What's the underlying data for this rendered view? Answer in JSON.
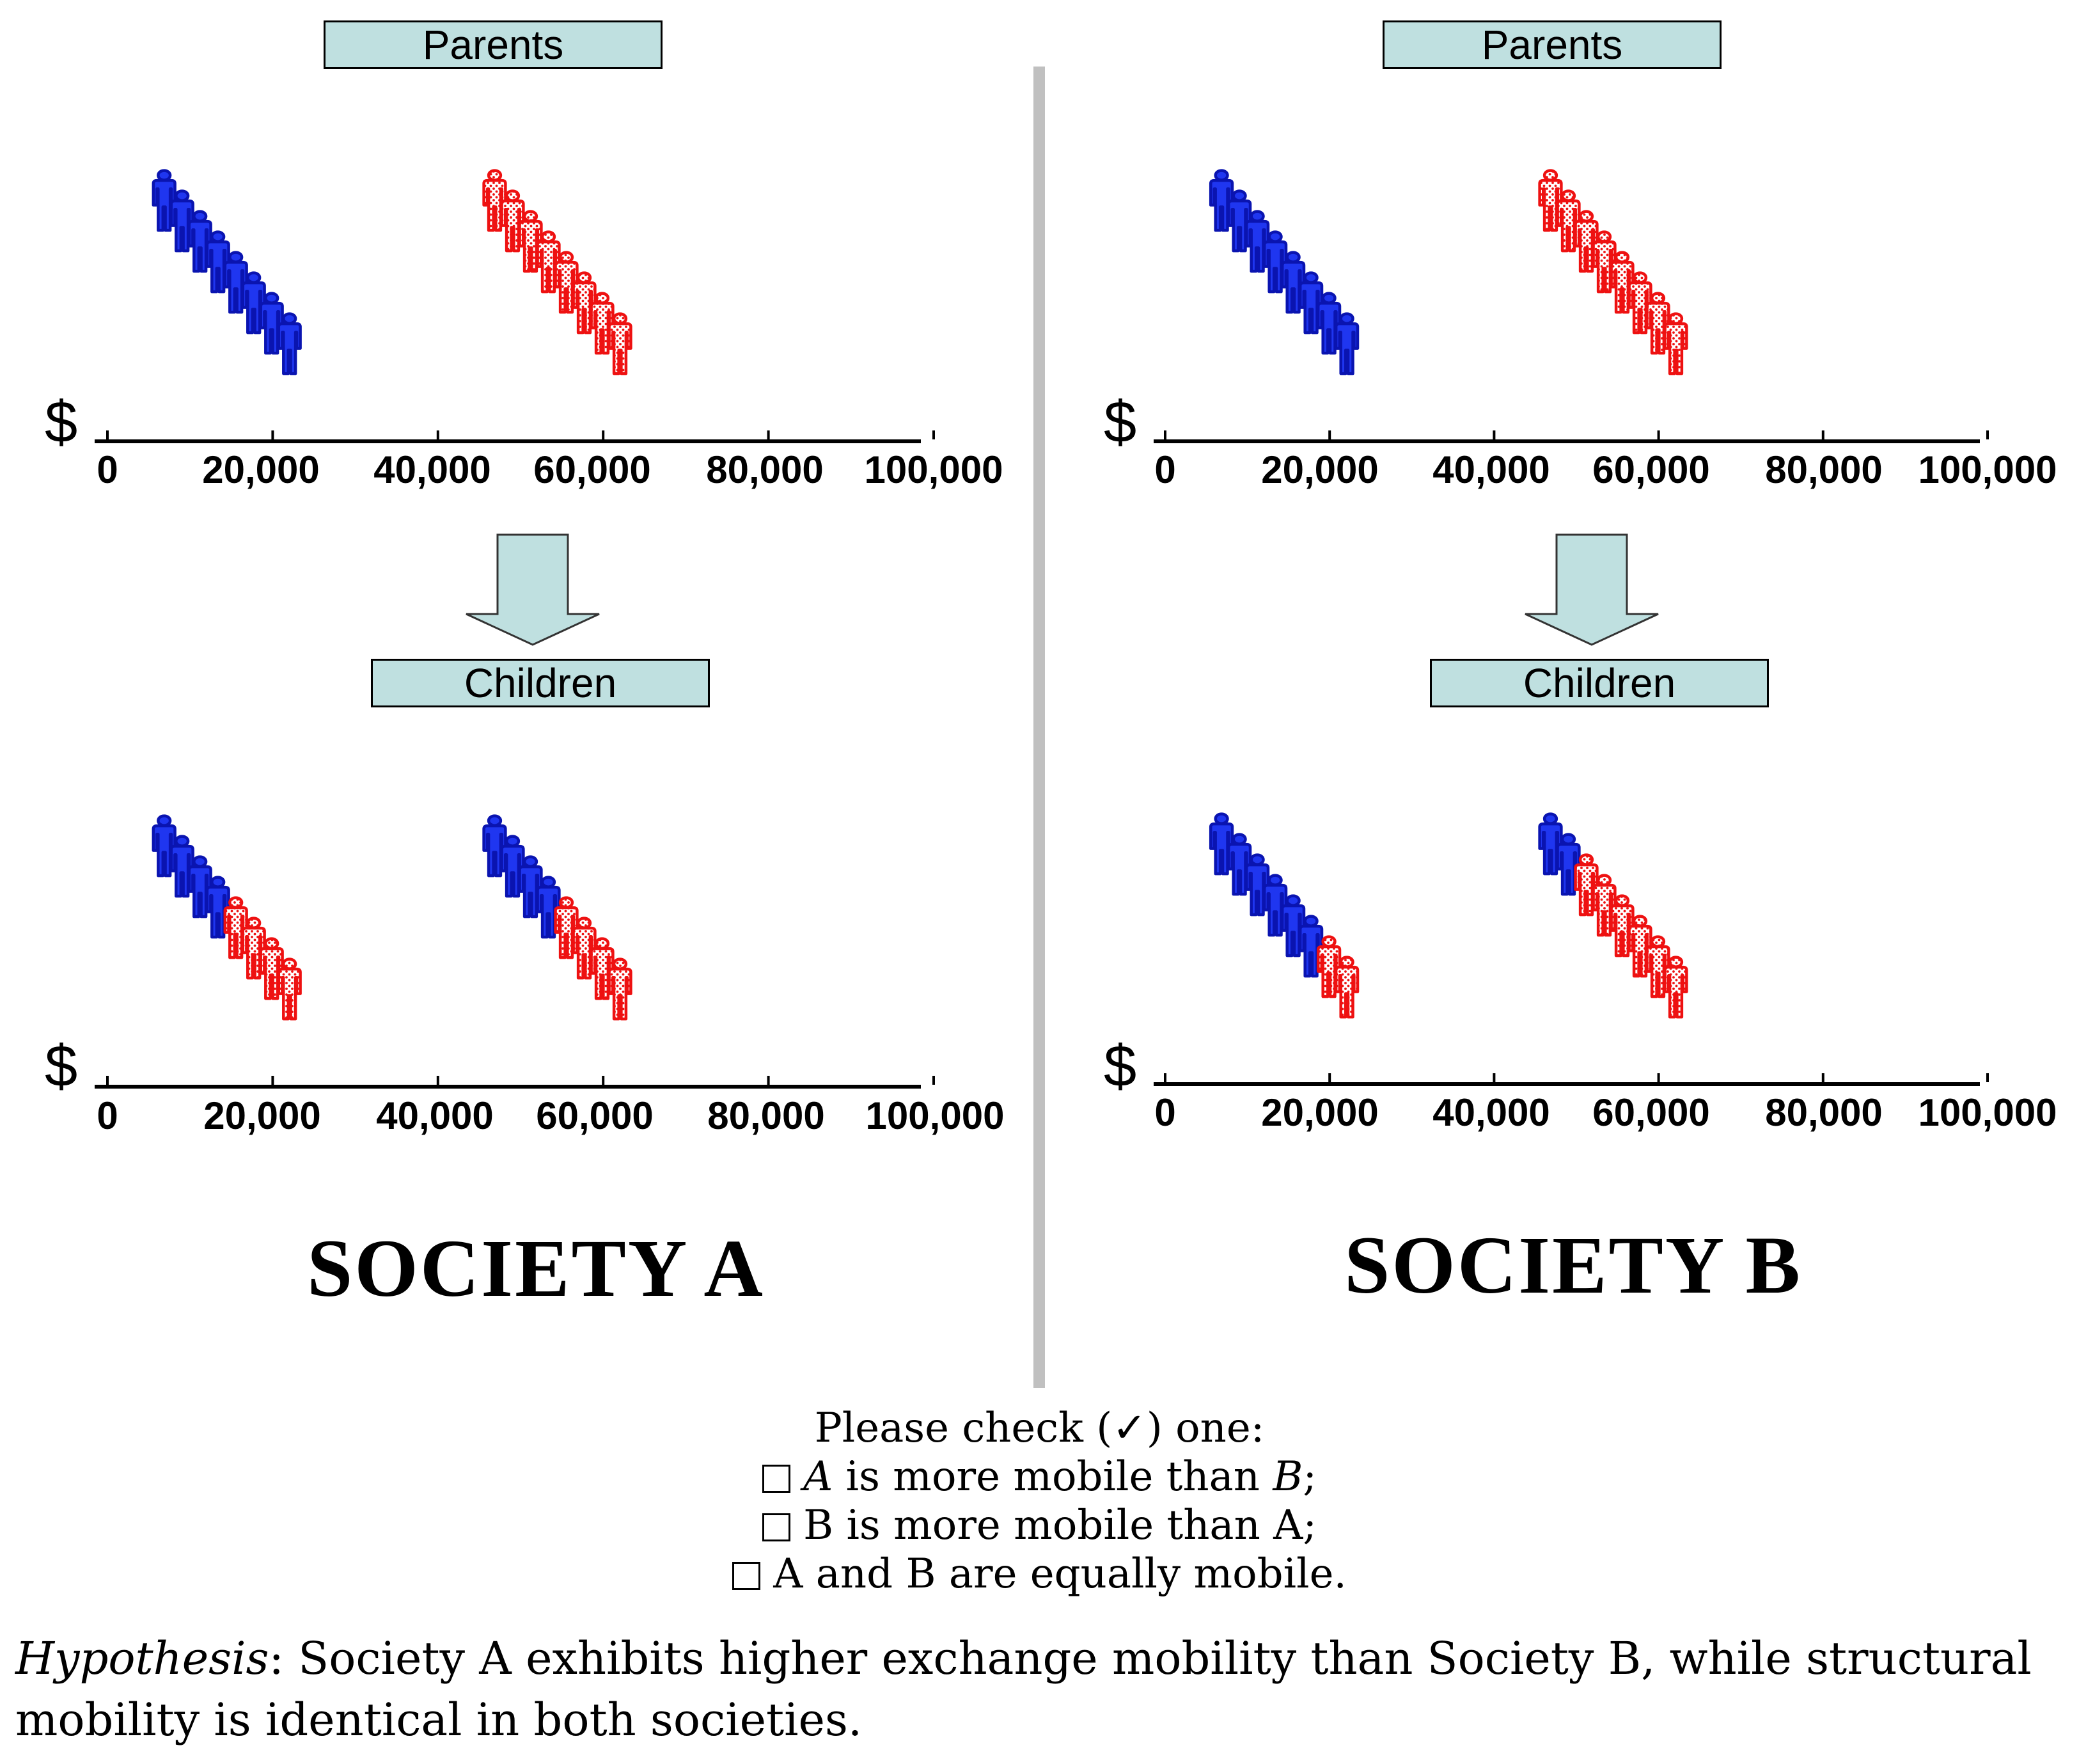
{
  "panels": [
    {
      "society_label": "SOCIETY A",
      "parents_label": "Parents",
      "children_label": "Children",
      "axis_symbol": "$",
      "ticks": [
        "0",
        "20,000",
        "40,000",
        "60,000",
        "80,000",
        "100,000"
      ],
      "parents_groups": [
        {
          "income": 10000,
          "colors": [
            "blue",
            "blue",
            "blue",
            "blue",
            "blue",
            "blue",
            "blue",
            "blue"
          ]
        },
        {
          "income": 50000,
          "colors": [
            "red",
            "red",
            "red",
            "red",
            "red",
            "red",
            "red",
            "red"
          ]
        }
      ],
      "children_groups": [
        {
          "income": 10000,
          "colors": [
            "blue",
            "blue",
            "blue",
            "blue",
            "red",
            "red",
            "red",
            "red"
          ]
        },
        {
          "income": 50000,
          "colors": [
            "blue",
            "blue",
            "blue",
            "blue",
            "red",
            "red",
            "red",
            "red"
          ]
        }
      ]
    },
    {
      "society_label": "SOCIETY B",
      "parents_label": "Parents",
      "children_label": "Children",
      "axis_symbol": "$",
      "ticks": [
        "0",
        "20,000",
        "40,000",
        "60,000",
        "80,000",
        "100,000"
      ],
      "parents_groups": [
        {
          "income": 10000,
          "colors": [
            "blue",
            "blue",
            "blue",
            "blue",
            "blue",
            "blue",
            "blue",
            "blue"
          ]
        },
        {
          "income": 50000,
          "colors": [
            "red",
            "red",
            "red",
            "red",
            "red",
            "red",
            "red",
            "red"
          ]
        }
      ],
      "children_groups": [
        {
          "income": 10000,
          "colors": [
            "blue",
            "blue",
            "blue",
            "blue",
            "blue",
            "blue",
            "red",
            "red"
          ]
        },
        {
          "income": 50000,
          "colors": [
            "blue",
            "blue",
            "red",
            "red",
            "red",
            "red",
            "red",
            "red"
          ]
        }
      ]
    }
  ],
  "colors": {
    "blue": "#1f36f0",
    "red": "#ee1111",
    "label_bg": "#bfe0e0",
    "arrow_fill": "#bfe0e0",
    "divider": "#c0c0c0"
  },
  "question": {
    "prompt": "Please check (✓) one:",
    "options": [
      {
        "label_a": "A",
        "label_mid": " is more mobile than ",
        "label_b": "B",
        "label_end": ";"
      },
      {
        "label": "B is more mobile than A;"
      },
      {
        "label": "A and B are equally mobile."
      }
    ]
  },
  "hypothesis": {
    "term": "Hypothesis",
    "text": ": Society A exhibits higher exchange mobility than Society B, while structural mobility is identical in both societies."
  }
}
